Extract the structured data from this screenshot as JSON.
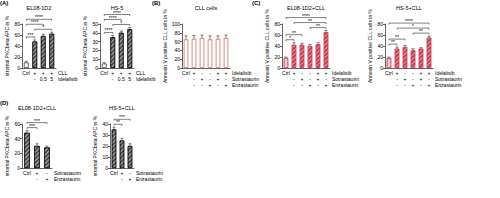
{
  "chart_data": [
    {
      "type": "bar",
      "panel_label": "(A)",
      "title": "EL08-1D2",
      "y_label": "stromal PKCbeta APC in %",
      "categories": [
        "Ctrl",
        null,
        null,
        null
      ],
      "treatment_rows": [
        {
          "name": "CLL",
          "marks": [
            null,
            "+",
            "+",
            "+"
          ]
        },
        {
          "name": "Idelalisib",
          "marks": [
            null,
            "-",
            "0.5",
            "5"
          ]
        }
      ],
      "values": [
        10,
        48,
        58,
        62
      ],
      "errors": [
        2,
        3,
        3,
        3
      ],
      "colors": [
        "#ffffff",
        "#4d4d4d",
        "#4d4d4d",
        "#4d4d4d"
      ],
      "color": "#000000",
      "ylim": [
        0,
        80
      ],
      "yticks": [
        0,
        20,
        40,
        60,
        80
      ],
      "grid": false,
      "comparisons": [
        {
          "groups": [
            1,
            3
          ],
          "label": "*"
        },
        {
          "groups": [
            0,
            1
          ],
          "label": "***"
        },
        {
          "groups": [
            0,
            2
          ],
          "label": "****"
        },
        {
          "groups": [
            0,
            3
          ],
          "label": "****"
        }
      ]
    },
    {
      "type": "bar",
      "title": "HS-5",
      "y_label": "stromal PKCbeta APC in %",
      "categories": [
        "Ctrl",
        null,
        null,
        null
      ],
      "treatment_rows": [
        {
          "name": "CLL",
          "marks": [
            null,
            "+",
            "+",
            "+"
          ]
        },
        {
          "name": "Idelalisib",
          "marks": [
            null,
            "-",
            "0.5",
            "5"
          ]
        }
      ],
      "values": [
        5,
        35,
        40,
        44
      ],
      "errors": [
        1,
        2,
        2,
        2
      ],
      "colors": [
        "#ffffff",
        "#4d4d4d",
        "#4d4d4d",
        "#4d4d4d"
      ],
      "color": "#000000",
      "ylim": [
        0,
        50
      ],
      "yticks": [
        0,
        10,
        20,
        30,
        40,
        50
      ],
      "grid": false,
      "comparisons": [
        {
          "groups": [
            1,
            3
          ],
          "label": "*"
        },
        {
          "groups": [
            0,
            1
          ],
          "label": "****"
        },
        {
          "groups": [
            0,
            2
          ],
          "label": "****"
        },
        {
          "groups": [
            0,
            3
          ],
          "label": "****"
        }
      ]
    },
    {
      "type": "bar",
      "panel_label": "(B)",
      "title": "CLL cells",
      "y_label": "Annexin V positive CLL cells in %",
      "categories": [
        "Ctrl",
        null,
        null,
        null,
        null,
        null
      ],
      "treatment_rows": [
        {
          "name": "Idelalisib",
          "marks": [
            null,
            "+",
            "-",
            "-",
            "+",
            "+"
          ]
        },
        {
          "name": "Sotrastaurin",
          "marks": [
            null,
            "-",
            "+",
            "-",
            "+",
            "-"
          ]
        },
        {
          "name": "Enzastaurin",
          "marks": [
            null,
            "-",
            "-",
            "+",
            "-",
            "+"
          ]
        }
      ],
      "values": [
        65,
        66,
        68,
        65,
        66,
        68
      ],
      "errors": [
        8,
        8,
        7,
        8,
        7,
        7
      ],
      "colors": [
        "#ffffff",
        "#ffffff",
        "#ffffff",
        "#ffffff",
        "#ffffff",
        "#ffffff"
      ],
      "color": "#c0392b",
      "ylim": [
        0,
        100
      ],
      "yticks": [
        0,
        20,
        40,
        60,
        80,
        100
      ],
      "grid": false
    },
    {
      "type": "bar",
      "panel_label": "(C)",
      "title": "EL08-1D2+CLL",
      "y_label": "Annexin V positive CLL cells in %",
      "categories": [
        "Ctrl",
        null,
        null,
        null,
        null,
        null
      ],
      "treatment_rows": [
        {
          "name": "Idelalisib",
          "marks": [
            null,
            "+",
            "-",
            "-",
            "+",
            "+"
          ]
        },
        {
          "name": "Sotrastaurin",
          "marks": [
            null,
            "-",
            "+",
            "-",
            "+",
            "-"
          ]
        },
        {
          "name": "Enzastaurin",
          "marks": [
            null,
            "-",
            "-",
            "+",
            "-",
            "+"
          ]
        }
      ],
      "values": [
        18,
        42,
        42,
        40,
        43,
        65
      ],
      "errors": [
        2,
        4,
        3,
        3,
        3,
        3
      ],
      "colors": [
        "#f3c6cc",
        "#c8384a",
        "#c8384a",
        "#c8384a",
        "#c8384a",
        "#c8384a"
      ],
      "color": "#c8384a",
      "ylim": [
        0,
        80
      ],
      "yticks": [
        0,
        20,
        40,
        60,
        80
      ],
      "grid": false,
      "comparisons": [
        {
          "groups": [
            3,
            5
          ],
          "label": "**"
        },
        {
          "groups": [
            0,
            1
          ],
          "label": "*"
        },
        {
          "groups": [
            0,
            2
          ],
          "label": "**"
        },
        {
          "groups": [
            1,
            5
          ],
          "label": "**"
        },
        {
          "groups": [
            0,
            5
          ],
          "label": "****"
        }
      ]
    },
    {
      "type": "bar",
      "title": "HS-5+CLL",
      "y_label": "Annexin V positive CLL cells in %",
      "categories": [
        "Ctrl",
        null,
        null,
        null,
        null,
        null
      ],
      "treatment_rows": [
        {
          "name": "Idelalisib",
          "marks": [
            null,
            "+",
            "-",
            "-",
            "+",
            "+"
          ]
        },
        {
          "name": "Sotrastaurin",
          "marks": [
            null,
            "-",
            "+",
            "-",
            "+",
            "-"
          ]
        },
        {
          "name": "Enzastaurin",
          "marks": [
            null,
            "-",
            "-",
            "+",
            "-",
            "+"
          ]
        }
      ],
      "values": [
        18,
        35,
        38,
        32,
        35,
        55
      ],
      "errors": [
        2,
        3,
        3,
        3,
        2,
        3
      ],
      "colors": [
        "#f3c6cc",
        "#c8384a",
        "#c8384a",
        "#c8384a",
        "#c8384a",
        "#c8384a"
      ],
      "color": "#c8384a",
      "ylim": [
        0,
        80
      ],
      "yticks": [
        0,
        20,
        40,
        60,
        80
      ],
      "grid": false,
      "comparisons": [
        {
          "groups": [
            3,
            5
          ],
          "label": "**"
        },
        {
          "groups": [
            0,
            1
          ],
          "label": "**"
        },
        {
          "groups": [
            0,
            2
          ],
          "label": "**"
        },
        {
          "groups": [
            1,
            5
          ],
          "label": "*"
        },
        {
          "groups": [
            0,
            5
          ],
          "label": "****"
        }
      ]
    },
    {
      "type": "bar",
      "panel_label": "(D)",
      "title": "EL08-1D2+CLL",
      "y_label": "stromal PKCbeta APC in %",
      "categories": [
        "Ctrl",
        null,
        null
      ],
      "treatment_rows": [
        {
          "name": "Sotrastaurin",
          "marks": [
            null,
            "+",
            "-"
          ]
        },
        {
          "name": "Enzastaurin",
          "marks": [
            null,
            "-",
            "+"
          ]
        }
      ],
      "values": [
        48,
        30,
        28
      ],
      "errors": [
        3,
        3,
        2
      ],
      "colors": [
        "#4d4d4d",
        "#4d4d4d",
        "#4d4d4d"
      ],
      "color": "#000000",
      "ylim": [
        0,
        60
      ],
      "yticks": [
        0,
        20,
        40,
        60
      ],
      "grid": false,
      "comparisons": [
        {
          "groups": [
            0,
            1
          ],
          "label": "***"
        },
        {
          "groups": [
            0,
            2
          ],
          "label": "***"
        }
      ]
    },
    {
      "type": "bar",
      "title": "HS-5+CLL",
      "y_label": "stromal PKCbeta APC in %",
      "categories": [
        "Ctrl",
        null,
        null
      ],
      "treatment_rows": [
        {
          "name": "Sotrastaurin",
          "marks": [
            null,
            "+",
            "-"
          ]
        },
        {
          "name": "Enzastaurin",
          "marks": [
            null,
            "-",
            "+"
          ]
        }
      ],
      "values": [
        35,
        25,
        20
      ],
      "errors": [
        2,
        2,
        2
      ],
      "colors": [
        "#4d4d4d",
        "#4d4d4d",
        "#4d4d4d"
      ],
      "color": "#000000",
      "ylim": [
        0,
        40
      ],
      "yticks": [
        0,
        10,
        20,
        30,
        40
      ],
      "grid": false,
      "comparisons": [
        {
          "groups": [
            0,
            1
          ],
          "label": "**"
        },
        {
          "groups": [
            0,
            2
          ],
          "label": "***"
        }
      ]
    }
  ]
}
